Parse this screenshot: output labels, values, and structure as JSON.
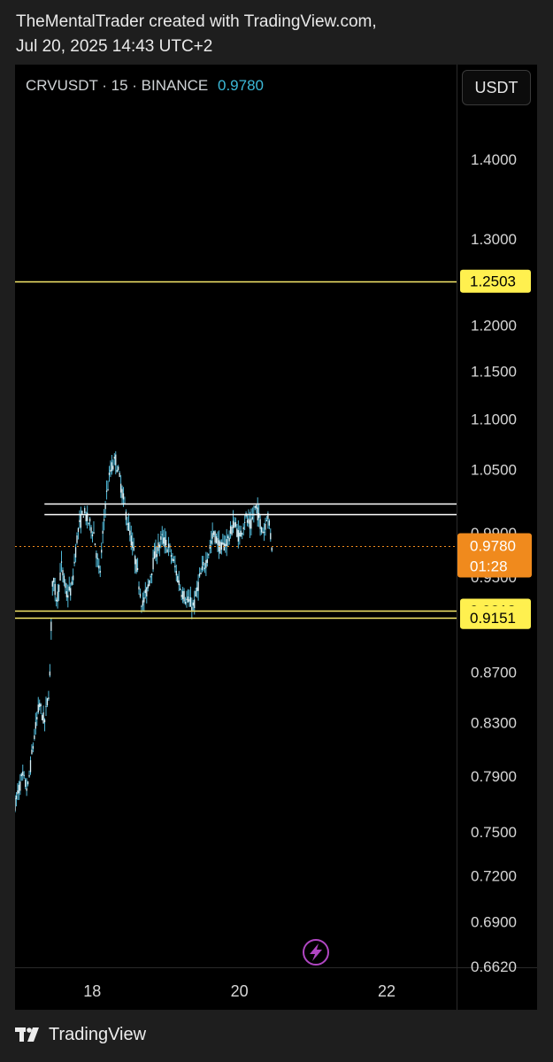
{
  "header": {
    "line1": "TheMentalTrader created with TradingView.com,",
    "line2": "Jul 20, 2025 14:43 UTC+2"
  },
  "symbol": {
    "info": "CRVUSDT · 15 · BINANCE",
    "last_price": "0.9780"
  },
  "currency_button": "USDT",
  "footer": {
    "brand": "TradingView"
  },
  "colors": {
    "background": "#000000",
    "candle": "#4fb7d6",
    "level_line": "#f7e96b",
    "level_label_bg": "#fff04f",
    "range_line": "#ffffff",
    "current_price_bg": "#f08a1d",
    "current_price_line": "#f08a1d",
    "lightning_icon": "#b046c2"
  },
  "chart_data": {
    "type": "candlestick",
    "symbol": "CRVUSDT",
    "interval": "15",
    "exchange": "BINANCE",
    "y_scale": "log",
    "y_ticks": [
      "1.4000",
      "1.3000",
      "1.2000",
      "1.1500",
      "1.1000",
      "1.0500",
      "0.9900",
      "0.9500",
      "0.8700",
      "0.8300",
      "0.7900",
      "0.7500",
      "0.7200",
      "0.6900",
      "0.6620"
    ],
    "x_ticks": [
      "18",
      "20",
      "22"
    ],
    "x_range_days": [
      16.95,
      22.95
    ],
    "horizontal_levels": [
      {
        "value": 1.2503,
        "label": "1.2503",
        "style": "yellow"
      },
      {
        "value": 0.9213,
        "label": "0.9213",
        "style": "yellow"
      },
      {
        "value": 0.9151,
        "label": "0.9151",
        "style": "yellow"
      },
      {
        "value": 1.0175,
        "label": "",
        "style": "white"
      },
      {
        "value": 1.0075,
        "label": "",
        "style": "white"
      }
    ],
    "current_price": {
      "value": 0.978,
      "label": "0.9780",
      "countdown": "01:28"
    },
    "series_path": [
      [
        16.95,
        0.77
      ],
      [
        17.05,
        0.79
      ],
      [
        17.12,
        0.78
      ],
      [
        17.2,
        0.815
      ],
      [
        17.28,
        0.845
      ],
      [
        17.35,
        0.83
      ],
      [
        17.42,
        0.86
      ],
      [
        17.46,
        0.95
      ],
      [
        17.52,
        0.93
      ],
      [
        17.58,
        0.96
      ],
      [
        17.65,
        0.935
      ],
      [
        17.72,
        0.94
      ],
      [
        17.8,
        0.99
      ],
      [
        17.88,
        1.01
      ],
      [
        17.95,
        1.0
      ],
      [
        18.02,
        0.99
      ],
      [
        18.1,
        0.95
      ],
      [
        18.18,
        1.02
      ],
      [
        18.25,
        1.05
      ],
      [
        18.32,
        1.06
      ],
      [
        18.4,
        1.03
      ],
      [
        18.48,
        1.0
      ],
      [
        18.6,
        0.96
      ],
      [
        18.68,
        0.925
      ],
      [
        18.75,
        0.94
      ],
      [
        18.85,
        0.97
      ],
      [
        18.95,
        0.985
      ],
      [
        19.05,
        0.975
      ],
      [
        19.12,
        0.96
      ],
      [
        19.2,
        0.94
      ],
      [
        19.28,
        0.93
      ],
      [
        19.38,
        0.925
      ],
      [
        19.46,
        0.95
      ],
      [
        19.55,
        0.965
      ],
      [
        19.65,
        0.99
      ],
      [
        19.75,
        0.975
      ],
      [
        19.85,
        0.985
      ],
      [
        19.93,
        1.0
      ],
      [
        20.0,
        0.985
      ],
      [
        20.08,
        1.005
      ],
      [
        20.15,
        0.995
      ],
      [
        20.22,
        1.015
      ],
      [
        20.28,
        1.0
      ],
      [
        20.33,
        0.99
      ],
      [
        20.38,
        1.01
      ],
      [
        20.44,
        0.978
      ]
    ]
  }
}
